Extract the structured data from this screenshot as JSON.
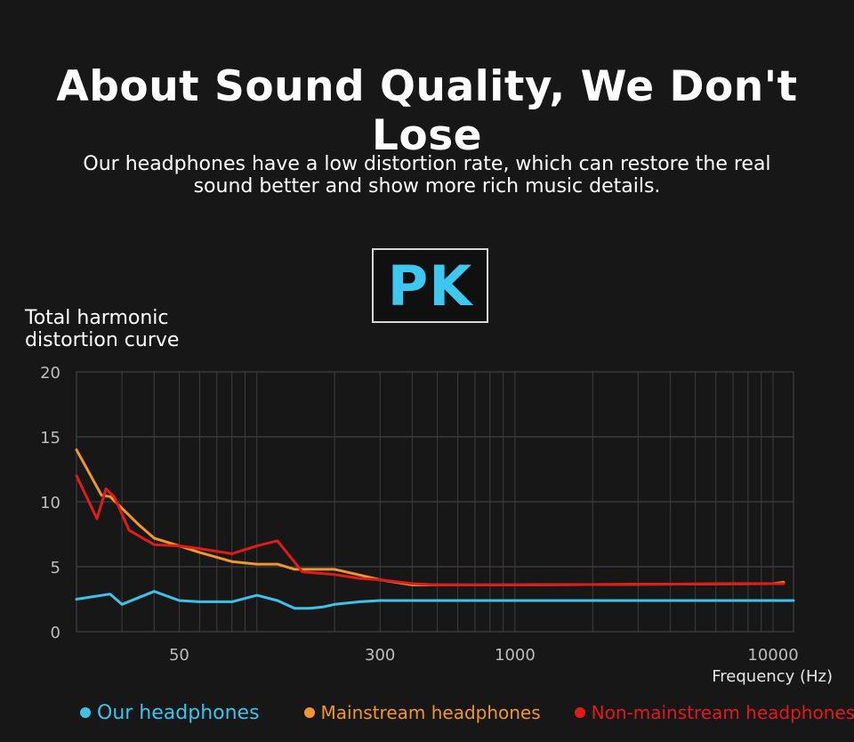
{
  "header": {
    "title": "About Sound Quality, We Don't Lose",
    "subtitle_line1": "Our headphones have a low distortion rate, which can restore the real",
    "subtitle_line2": "sound better and show more rich music details.",
    "badge": "PK"
  },
  "chart_data": {
    "type": "line",
    "ylabel_line1": "Total harmonic",
    "ylabel_line2": "distortion curve",
    "xlabel": "Frequency (Hz)",
    "x_scale": "log",
    "xlim": [
      20,
      12000
    ],
    "ylim": [
      0,
      20
    ],
    "grid": true,
    "legend_position": "bottom",
    "yticks": [
      0,
      5,
      10,
      15,
      20
    ],
    "xticks": [
      {
        "value": 50,
        "label": "50"
      },
      {
        "value": 300,
        "label": "300"
      },
      {
        "value": 1000,
        "label": "1000"
      },
      {
        "value": 10000,
        "label": "10000"
      }
    ],
    "series": [
      {
        "name": "Our headphones",
        "color": "#3ec2ea",
        "x": [
          20,
          27,
          30,
          40,
          50,
          60,
          80,
          100,
          120,
          140,
          160,
          180,
          200,
          250,
          300,
          400,
          500,
          1000,
          10000,
          12000
        ],
        "y": [
          2.5,
          2.9,
          2.1,
          3.1,
          2.4,
          2.3,
          2.3,
          2.8,
          2.4,
          1.8,
          1.8,
          1.9,
          2.1,
          2.3,
          2.4,
          2.4,
          2.4,
          2.4,
          2.4,
          2.4
        ]
      },
      {
        "name": "Mainstream headphones",
        "color": "#f0962e",
        "x": [
          20,
          25,
          27,
          30,
          35,
          40,
          50,
          60,
          80,
          100,
          120,
          140,
          160,
          200,
          300,
          400,
          500,
          1000,
          10000,
          11000
        ],
        "y": [
          14,
          10.5,
          10.4,
          9.5,
          8.2,
          7.2,
          6.6,
          6.1,
          5.4,
          5.2,
          5.2,
          4.8,
          4.8,
          4.8,
          4.0,
          3.6,
          3.6,
          3.6,
          3.7,
          3.8
        ]
      },
      {
        "name": "Non-mainstream headphones",
        "color": "#e01b1b",
        "x": [
          20,
          24,
          26,
          28,
          32,
          40,
          50,
          60,
          80,
          100,
          120,
          150,
          200,
          250,
          300,
          400,
          500,
          1000,
          10000,
          11000
        ],
        "y": [
          12,
          8.7,
          11.0,
          10.4,
          7.8,
          6.7,
          6.6,
          6.4,
          6.0,
          6.6,
          7.0,
          4.6,
          4.4,
          4.1,
          4.0,
          3.7,
          3.6,
          3.6,
          3.7,
          3.7
        ]
      }
    ]
  }
}
